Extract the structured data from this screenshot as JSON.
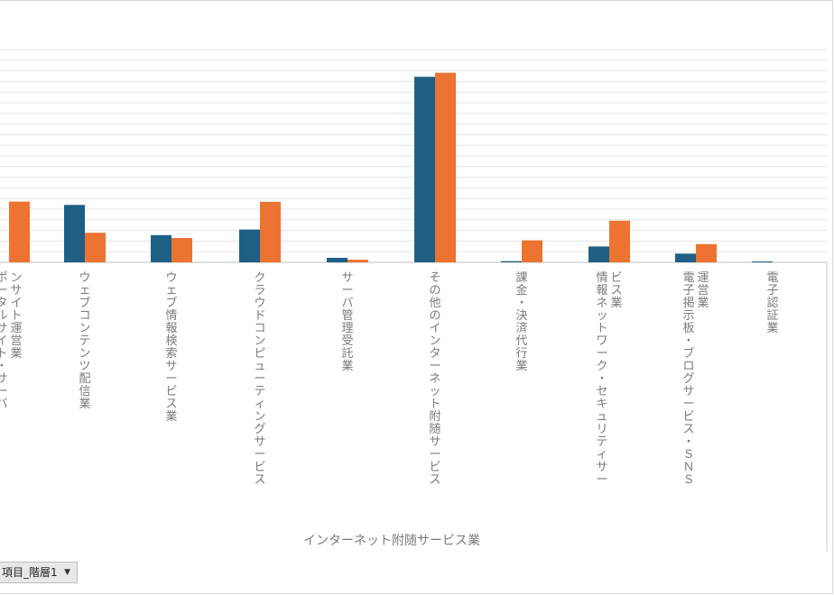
{
  "chart_data": {
    "type": "bar",
    "xlabel": "インターネット附随サービス業",
    "ylim": [
      0,
      9000
    ],
    "grid": true,
    "categories": [
      [
        "ポータルサイト・サーバ",
        "ンサイト運営業"
      ],
      [
        "ウェブコンテンツ配信業"
      ],
      [
        "ウェブ情報検索サービス業"
      ],
      [
        "クラウドコンピューティングサービス"
      ],
      [
        "サーバ管理受託業"
      ],
      [
        "その他のインターネット附随サービス"
      ],
      [
        "課金・決済代行業"
      ],
      [
        "情報ネットワーク・セキュリティサー",
        "ビス業"
      ],
      [
        "電子掲示板・ブログサービス・ＳＮＳ",
        "運営業"
      ],
      [
        "電子認証業"
      ]
    ],
    "series": [
      {
        "color": "#1f5f86",
        "values": [
          null,
          2430,
          1150,
          1390,
          190,
          7850,
          50,
          670,
          370,
          40
        ]
      },
      {
        "color": "#ec7331",
        "values": [
          2570,
          1250,
          1030,
          2560,
          110,
          8020,
          930,
          1760,
          770,
          0
        ]
      }
    ]
  },
  "filter_button": {
    "label": "項目_階層1",
    "icon": "dropdown-arrow-icon"
  }
}
